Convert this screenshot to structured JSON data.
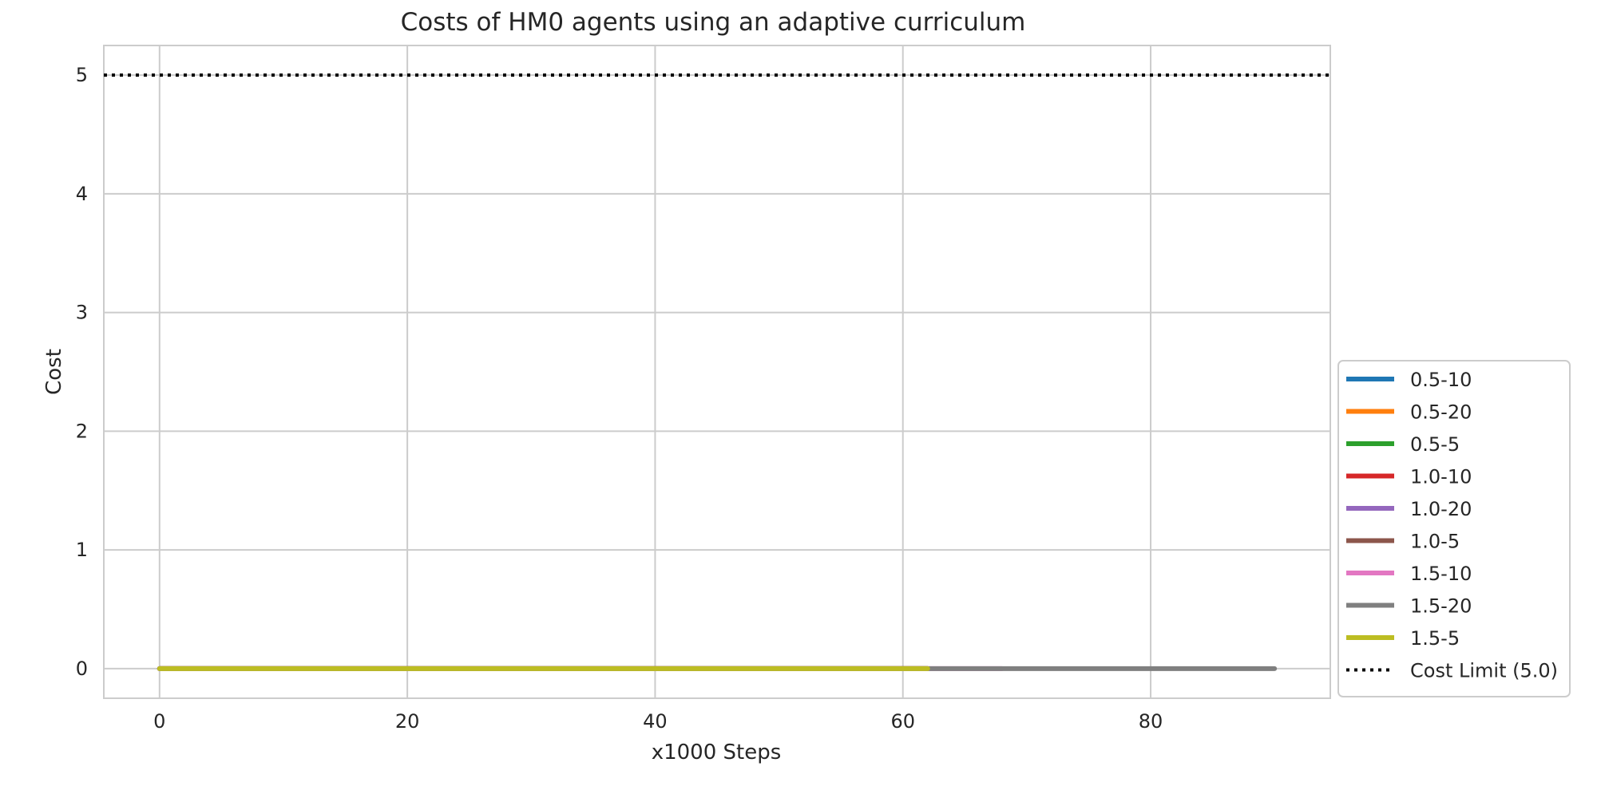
{
  "chart_data": {
    "type": "line",
    "title": "Costs of HM0 agents using an adaptive curriculum",
    "xlabel": "x1000 Steps",
    "ylabel": "Cost",
    "xlim": [
      -4.5,
      94.5
    ],
    "ylim": [
      -0.25,
      5.25
    ],
    "xticks": [
      0,
      20,
      40,
      60,
      80
    ],
    "yticks": [
      0,
      1,
      2,
      3,
      4,
      5
    ],
    "grid": true,
    "legend_placement": "lower right, outside plot area",
    "series": [
      {
        "name": "0.5-10",
        "color": "#1f77b4",
        "x": [
          0,
          62
        ],
        "y": [
          0,
          0
        ]
      },
      {
        "name": "0.5-20",
        "color": "#ff7f0e",
        "x": [
          0,
          62
        ],
        "y": [
          0,
          0
        ]
      },
      {
        "name": "0.5-5",
        "color": "#2ca02c",
        "x": [
          0,
          62
        ],
        "y": [
          0,
          0
        ]
      },
      {
        "name": "1.0-10",
        "color": "#d62728",
        "x": [
          0,
          62
        ],
        "y": [
          0,
          0
        ]
      },
      {
        "name": "1.0-20",
        "color": "#9467bd",
        "x": [
          0,
          62
        ],
        "y": [
          0,
          0
        ]
      },
      {
        "name": "1.0-5",
        "color": "#8c564b",
        "x": [
          0,
          62
        ],
        "y": [
          0,
          0
        ]
      },
      {
        "name": "1.5-10",
        "color": "#e377c2",
        "x": [
          0,
          68
        ],
        "y": [
          0,
          0
        ]
      },
      {
        "name": "1.5-20",
        "color": "#7f7f7f",
        "x": [
          0,
          90
        ],
        "y": [
          0,
          0
        ]
      },
      {
        "name": "1.5-5",
        "color": "#bcbd22",
        "x": [
          0,
          62
        ],
        "y": [
          0,
          0
        ]
      }
    ],
    "reference_lines": [
      {
        "name": "Cost Limit (5.0)",
        "y": 5.0,
        "color": "#000000",
        "style": "dotted"
      }
    ]
  }
}
